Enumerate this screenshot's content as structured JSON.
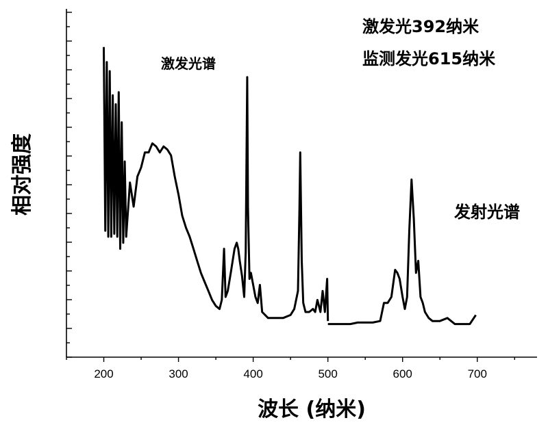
{
  "chart_data": {
    "type": "line",
    "xlabel": "波长 (纳米)",
    "ylabel": "相对强度",
    "xlim": [
      150,
      780
    ],
    "xticks": [
      200,
      300,
      400,
      500,
      600,
      700
    ],
    "y_tick_labels_shown": false,
    "grid": false,
    "legend": "none",
    "annotations": {
      "excitation_label": "激发光谱",
      "emission_label": "发射光谱",
      "info_line1": "激发光392纳米",
      "info_line2": "监测发光615纳米"
    },
    "series": [
      {
        "x": [
          200,
          202,
          204,
          206,
          208,
          210,
          212,
          214,
          216,
          218,
          220,
          222,
          224,
          226,
          228,
          230,
          235,
          240,
          245,
          250,
          255,
          260,
          265,
          270,
          275,
          280,
          285,
          290,
          295,
          300,
          305,
          310,
          315,
          320,
          325,
          330,
          335,
          340,
          345,
          350,
          355,
          358,
          361,
          363,
          366,
          370,
          375,
          378,
          380,
          382,
          385,
          388,
          390,
          392,
          393,
          395,
          397,
          400,
          403,
          406,
          409,
          412,
          416,
          420,
          425,
          430,
          440,
          450,
          455,
          460,
          462,
          463,
          465,
          467,
          470,
          475,
          480,
          483,
          486,
          490,
          493,
          496,
          499,
          500
        ],
        "y": [
          0.93,
          0.32,
          0.88,
          0.3,
          0.85,
          0.3,
          0.77,
          0.31,
          0.74,
          0.3,
          0.78,
          0.26,
          0.68,
          0.28,
          0.55,
          0.3,
          0.48,
          0.4,
          0.5,
          0.53,
          0.58,
          0.58,
          0.61,
          0.6,
          0.58,
          0.6,
          0.59,
          0.57,
          0.5,
          0.44,
          0.37,
          0.33,
          0.3,
          0.26,
          0.22,
          0.18,
          0.15,
          0.12,
          0.09,
          0.07,
          0.06,
          0.09,
          0.26,
          0.1,
          0.12,
          0.18,
          0.26,
          0.28,
          0.26,
          0.22,
          0.17,
          0.1,
          0.25,
          0.83,
          0.4,
          0.16,
          0.18,
          0.14,
          0.1,
          0.08,
          0.14,
          0.05,
          0.04,
          0.03,
          0.03,
          0.03,
          0.03,
          0.04,
          0.06,
          0.12,
          0.4,
          0.58,
          0.22,
          0.08,
          0.05,
          0.05,
          0.06,
          0.05,
          0.09,
          0.05,
          0.12,
          0.05,
          0.16,
          0.02
        ]
      },
      {
        "x": [
          500,
          510,
          520,
          530,
          540,
          550,
          560,
          570,
          575,
          580,
          585,
          590,
          593,
          596,
          600,
          603,
          606,
          609,
          612,
          615,
          618,
          621,
          624,
          627,
          630,
          635,
          640,
          650,
          660,
          670,
          680,
          690,
          698
        ],
        "y": [
          0.01,
          0.01,
          0.01,
          0.01,
          0.015,
          0.015,
          0.015,
          0.02,
          0.08,
          0.08,
          0.1,
          0.19,
          0.18,
          0.16,
          0.1,
          0.06,
          0.1,
          0.32,
          0.49,
          0.36,
          0.18,
          0.22,
          0.1,
          0.08,
          0.05,
          0.03,
          0.02,
          0.02,
          0.03,
          0.01,
          0.01,
          0.01,
          0.04
        ]
      }
    ]
  }
}
